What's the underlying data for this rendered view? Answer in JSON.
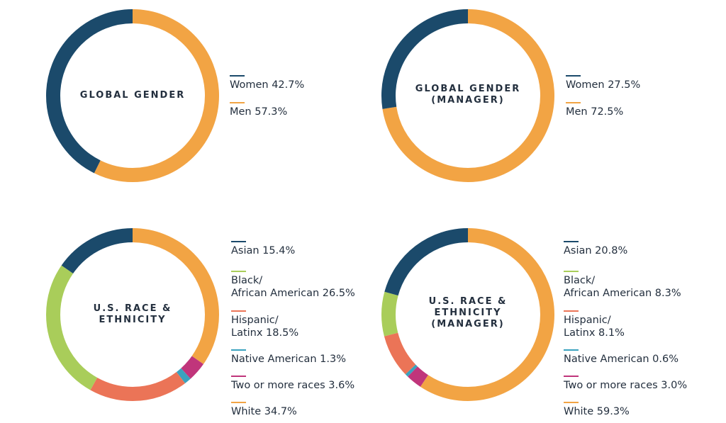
{
  "colors": {
    "navy": "#1b4a6b",
    "orange": "#f2a444",
    "green": "#a9cd5a",
    "coral": "#eb7457",
    "teal": "#3aa2be",
    "magenta": "#c0357b"
  },
  "chart_data": [
    {
      "type": "pie",
      "title": "GLOBAL GENDER",
      "slices": [
        {
          "label": "Women 42.7%",
          "value": 42.7,
          "color": "#1b4a6b"
        },
        {
          "label": "Men 57.3%",
          "value": 57.3,
          "color": "#f2a444"
        }
      ]
    },
    {
      "type": "pie",
      "title": "GLOBAL GENDER\n(MANAGER)",
      "slices": [
        {
          "label": "Women 27.5%",
          "value": 27.5,
          "color": "#1b4a6b"
        },
        {
          "label": "Men 72.5%",
          "value": 72.5,
          "color": "#f2a444"
        }
      ]
    },
    {
      "type": "pie",
      "title": "U.S. RACE &\nETHNICITY",
      "slices": [
        {
          "label": "Asian 15.4%",
          "value": 15.4,
          "color": "#1b4a6b"
        },
        {
          "label": "Black/\nAfrican American 26.5%",
          "value": 26.5,
          "color": "#a9cd5a"
        },
        {
          "label": "Hispanic/\nLatinx 18.5%",
          "value": 18.5,
          "color": "#eb7457"
        },
        {
          "label": "Native American 1.3%",
          "value": 1.3,
          "color": "#3aa2be"
        },
        {
          "label": "Two or more races 3.6%",
          "value": 3.6,
          "color": "#c0357b"
        },
        {
          "label": "White 34.7%",
          "value": 34.7,
          "color": "#f2a444"
        }
      ]
    },
    {
      "type": "pie",
      "title": "U.S. RACE &\nETHNICITY\n(MANAGER)",
      "slices": [
        {
          "label": "Asian 20.8%",
          "value": 20.8,
          "color": "#1b4a6b"
        },
        {
          "label": "Black/\nAfrican American 8.3%",
          "value": 8.3,
          "color": "#a9cd5a"
        },
        {
          "label": "Hispanic/\nLatinx 8.1%",
          "value": 8.1,
          "color": "#eb7457"
        },
        {
          "label": "Native American 0.6%",
          "value": 0.6,
          "color": "#3aa2be"
        },
        {
          "label": "Two or more races 3.0%",
          "value": 3.0,
          "color": "#c0357b"
        },
        {
          "label": "White 59.3%",
          "value": 59.3,
          "color": "#f2a444"
        }
      ]
    }
  ]
}
